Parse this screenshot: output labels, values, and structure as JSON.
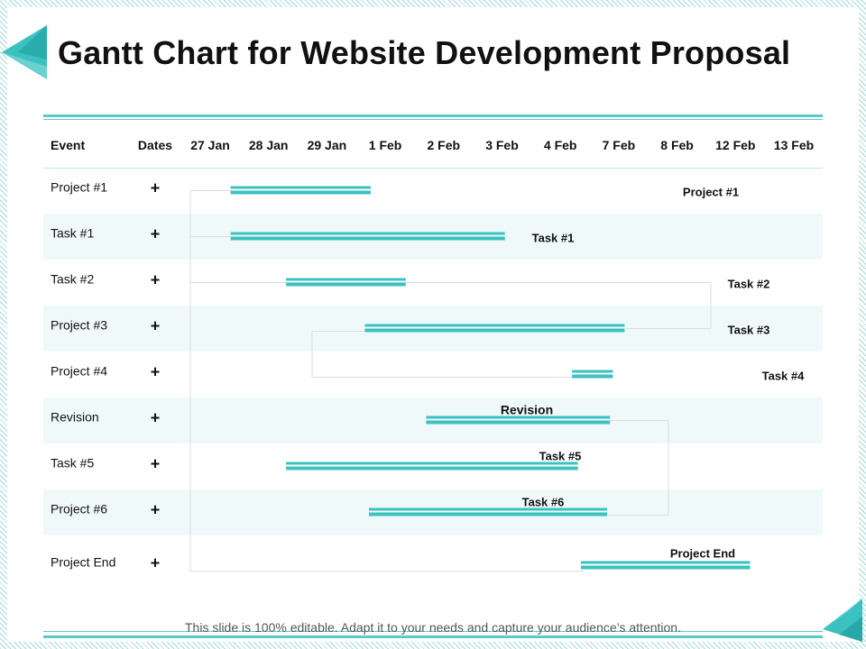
{
  "page": {
    "title": "Gantt Chart for Website Development Proposal",
    "footer": "This slide is 100% editable. Adapt it to your needs and capture your  audience’s attention."
  },
  "colors": {
    "accent": "#3cc1c1",
    "accent_dark": "#1a9a9a",
    "row_alt": "#f0f9f9",
    "rule": "#5ccaca",
    "connector": "#dcdcdc"
  },
  "chart_data": {
    "type": "gantt",
    "header": {
      "event_label": "Event",
      "dates_label": "Dates"
    },
    "dates": [
      "27 Jan",
      "28 Jan",
      "29 Jan",
      "1 Feb",
      "2 Feb",
      "3 Feb",
      "4 Feb",
      "7 Feb",
      "8 Feb",
      "12 Feb",
      "13 Feb"
    ],
    "rows": [
      {
        "event": "Project #1",
        "dates": "+",
        "start": 0.35,
        "end": 2.75,
        "label": "Project #1"
      },
      {
        "event": "Task #1",
        "dates": "+",
        "start": 0.35,
        "end": 5.05,
        "label": "Task #1"
      },
      {
        "event": "Task #2",
        "dates": "+",
        "start": 1.3,
        "end": 3.35,
        "label": "Task #2"
      },
      {
        "event": "Project #3",
        "dates": "+",
        "start": 2.65,
        "end": 7.1,
        "label": "Task #3"
      },
      {
        "event": "Project #4",
        "dates": "+",
        "start": 6.2,
        "end": 6.9,
        "label": "Task #4"
      },
      {
        "event": "Revision",
        "dates": "+",
        "start": 3.7,
        "end": 6.85,
        "label": "Revision"
      },
      {
        "event": "Task #5",
        "dates": "+",
        "start": 1.3,
        "end": 6.3,
        "label": "Task #5"
      },
      {
        "event": "Project #6",
        "dates": "+",
        "start": 2.72,
        "end": 6.8,
        "label": "Task #6"
      },
      {
        "event": "Project End",
        "dates": "+",
        "start": 6.35,
        "end": 9.25,
        "label": "Project End"
      }
    ]
  }
}
